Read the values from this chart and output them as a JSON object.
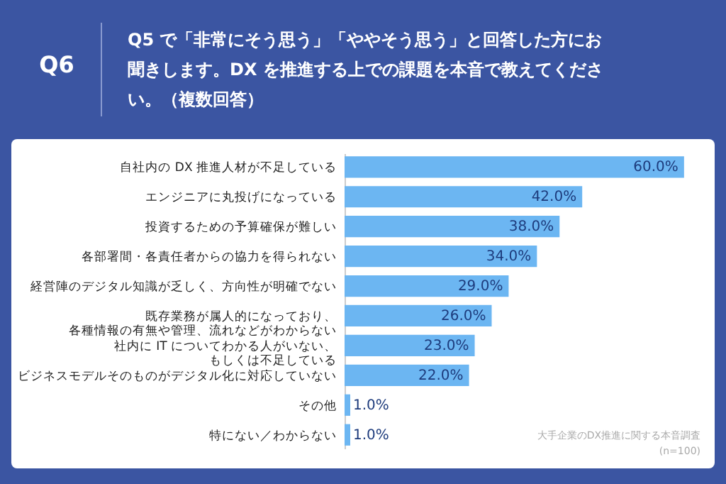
{
  "chart_data": {
    "type": "bar",
    "orientation": "horizontal",
    "title": "Q6",
    "subtitle": "Q5 で「非常にそう思う」「ややそう思う」と回答した方にお聞きします。DX を推進する上での課題を本音で教えてください。（複数回答）",
    "categories": [
      "自社内の DX 推進人材が不足している",
      "エンジニアに丸投げになっている",
      "投資するための予算確保が難しい",
      "各部署間・各責任者からの協力を得られない",
      "経営陣のデジタル知識が乏しく、方向性が明確でない",
      "既存業務が属人的になっており、各種情報の有無や管理、流れなどがわからない",
      "社内に IT についてわかる人がいない、もしくは不足している",
      "ビジネスモデルそのものがデジタル化に対応していない",
      "その他",
      "特にない／わからない"
    ],
    "values": [
      60,
      42,
      38,
      34,
      29,
      26,
      23,
      22,
      1,
      1
    ],
    "value_labels": [
      "60.0%",
      "42.0%",
      "38.0%",
      "34.0%",
      "29.0%",
      "26.0%",
      "23.0%",
      "22.0%",
      "1.0%",
      "1.0%"
    ],
    "color": "#6cb6f2",
    "annotations": [
      "大手企業のDX推進に関する本音調査",
      "(n=100)"
    ]
  }
}
